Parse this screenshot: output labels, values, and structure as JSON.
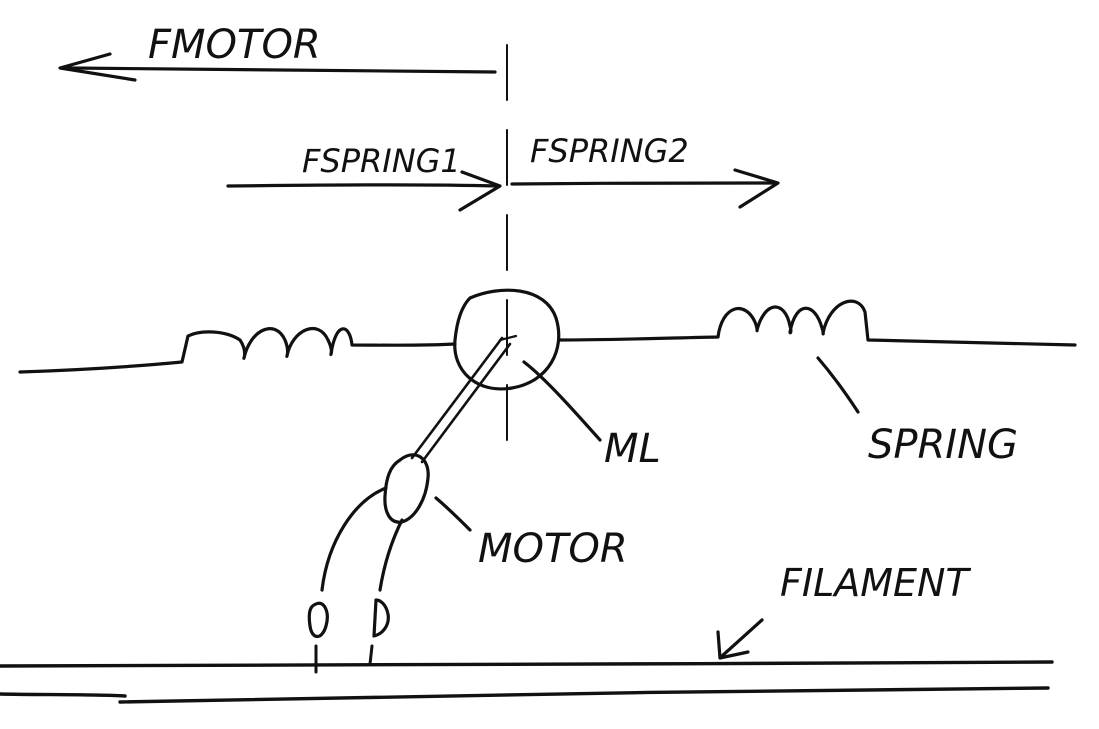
{
  "labels": {
    "f_motor": "FMOTOR",
    "f_spring1": "FSPRING1",
    "f_spring2": "FSPRING2",
    "ml": "ML",
    "spring": "SPRING",
    "motor": "MOTOR",
    "filament": "FILAMENT"
  },
  "colors": {
    "ink": "#111111",
    "paper": "#ffffff"
  }
}
